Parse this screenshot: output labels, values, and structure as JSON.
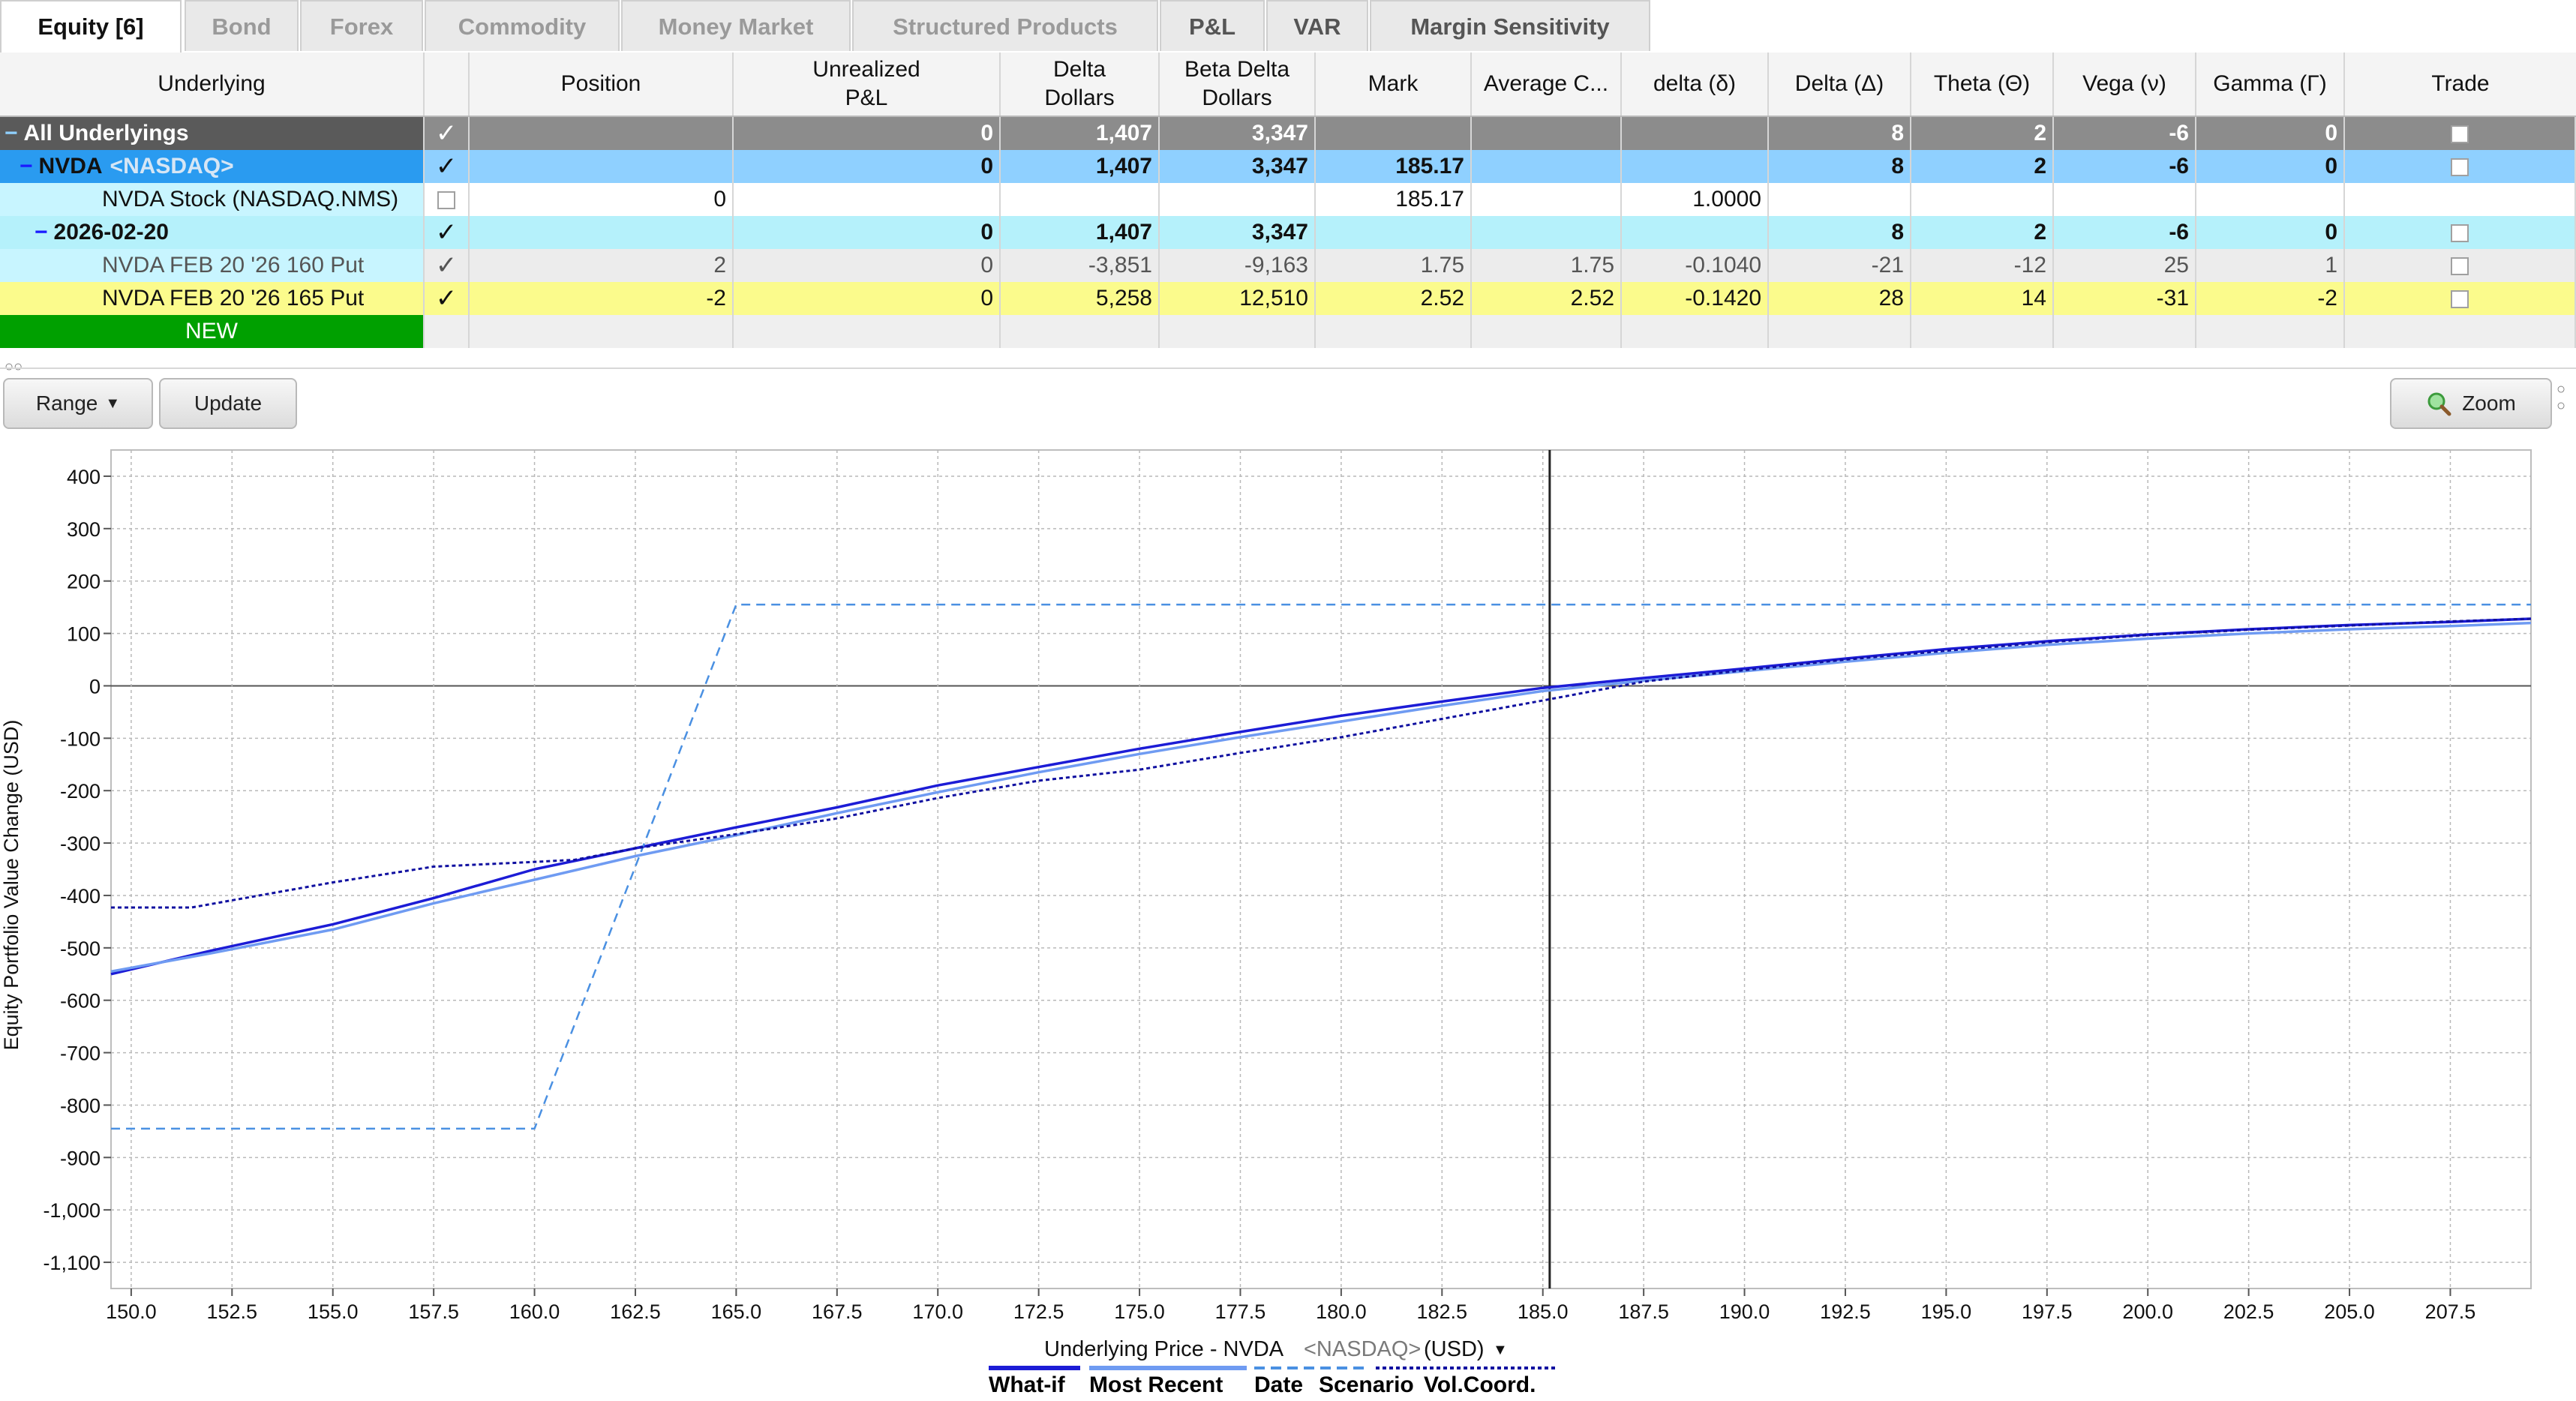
{
  "tabs": [
    "Equity [6]",
    "Bond",
    "Forex",
    "Commodity",
    "Money Market",
    "Structured Products",
    "P&L",
    "VAR",
    "Margin Sensitivity"
  ],
  "grid": {
    "headers": {
      "underlying": "Underlying",
      "position": "Position",
      "unrealized_1": "Unrealized",
      "unrealized_2": "P&L",
      "delta_dollars_1": "Delta",
      "delta_dollars_2": "Dollars",
      "beta_1": "Beta Delta",
      "beta_2": "Dollars",
      "mark": "Mark",
      "avg_cost": "Average C...",
      "delta_small": "delta (δ)",
      "delta_big": "Delta (Δ)",
      "theta": "Theta (Θ)",
      "vega": "Vega (ν)",
      "gamma": "Gamma (Γ)",
      "trade": "Trade"
    },
    "rows": [
      {
        "name": "All Underlyings",
        "extra": "",
        "position": "",
        "unrealized": "0",
        "delta_dollars": "1,407",
        "beta": "3,347",
        "mark": "",
        "avg": "",
        "delta_small": "",
        "delta_big": "8",
        "theta": "2",
        "vega": "-6",
        "gamma": "0"
      },
      {
        "name": "NVDA",
        "extra": "<NASDAQ>",
        "position": "",
        "unrealized": "0",
        "delta_dollars": "1,407",
        "beta": "3,347",
        "mark": "185.17",
        "avg": "",
        "delta_small": "",
        "delta_big": "8",
        "theta": "2",
        "vega": "-6",
        "gamma": "0"
      },
      {
        "name": "NVDA Stock (NASDAQ.NMS)",
        "extra": "",
        "position": "0",
        "unrealized": "",
        "delta_dollars": "",
        "beta": "",
        "mark": "185.17",
        "avg": "",
        "delta_small": "1.0000",
        "delta_big": "",
        "theta": "",
        "vega": "",
        "gamma": ""
      },
      {
        "name": "2026-02-20",
        "extra": "",
        "position": "",
        "unrealized": "0",
        "delta_dollars": "1,407",
        "beta": "3,347",
        "mark": "",
        "avg": "",
        "delta_small": "",
        "delta_big": "8",
        "theta": "2",
        "vega": "-6",
        "gamma": "0"
      },
      {
        "name": "NVDA FEB 20 '26 160 Put",
        "extra": "",
        "position": "2",
        "unrealized": "0",
        "delta_dollars": "-3,851",
        "beta": "-9,163",
        "mark": "1.75",
        "avg": "1.75",
        "delta_small": "-0.1040",
        "delta_big": "-21",
        "theta": "-12",
        "vega": "25",
        "gamma": "1"
      },
      {
        "name": "NVDA FEB 20 '26 165 Put",
        "extra": "",
        "position": "-2",
        "unrealized": "0",
        "delta_dollars": "5,258",
        "beta": "12,510",
        "mark": "2.52",
        "avg": "2.52",
        "delta_small": "-0.1420",
        "delta_big": "28",
        "theta": "14",
        "vega": "-31",
        "gamma": "-2"
      }
    ],
    "new_label": "NEW"
  },
  "toolbar": {
    "range": "Range",
    "update": "Update",
    "zoom": "Zoom"
  },
  "colors": {
    "all_row": "#8c8c8c",
    "nvda_row": "#8fd0ff",
    "light_row": "#c8f5ff",
    "exp_row": "#b5f1fb",
    "yellow_row": "#fbfb8c",
    "new_row": "#00a000",
    "series_today": "#1c1cd6",
    "series_mid": "#6f9bf2",
    "series_expiry": "#4a90e2",
    "series_dotted": "#1010a0"
  },
  "icons": {
    "zoom": "magnifier-icon",
    "range_arrow": "caret-down-icon"
  },
  "chart_data": {
    "type": "line",
    "ylabel": "Equity Portfolio Value Change (USD)",
    "xlabel_main": "Underlying Price - NVDA",
    "xlabel_exchange": "<NASDAQ>",
    "xlabel_unit": "(USD)",
    "xlim": [
      149.5,
      209.5
    ],
    "ylim": [
      -1150,
      450
    ],
    "yticks": [
      400,
      300,
      200,
      100,
      0,
      -100,
      -200,
      -300,
      -400,
      -500,
      -600,
      -700,
      -800,
      -900,
      -1000,
      -1100
    ],
    "ytick_labels": [
      "400",
      "300",
      "200",
      "100",
      "0",
      "-100",
      "-200",
      "-300",
      "-400",
      "-500",
      "-600",
      "-700",
      "-800",
      "-900",
      "-1,000",
      "-1,100"
    ],
    "xticks": [
      150,
      152.5,
      155,
      157.5,
      160,
      162.5,
      165,
      167.5,
      170,
      172.5,
      175,
      177.5,
      180,
      182.5,
      185,
      187.5,
      190,
      192.5,
      195,
      197.5,
      200,
      202.5,
      205,
      207.5
    ],
    "xtick_labels": [
      "150.0",
      "152.5",
      "155.0",
      "157.5",
      "160.0",
      "162.5",
      "165.0",
      "167.5",
      "170.0",
      "172.5",
      "175.0",
      "177.5",
      "180.0",
      "182.5",
      "185.0",
      "187.5",
      "190.0",
      "192.5",
      "195.0",
      "197.5",
      "200.0",
      "202.5",
      "205.0",
      "207.5"
    ],
    "current_price": 185.17,
    "grid": true,
    "legend": [
      "What-if",
      "Most Recent",
      "Date",
      "Scenario",
      "Vol.Coord."
    ],
    "legend_placement": "bottom",
    "series": [
      {
        "style": "solid-dark",
        "x": [
          149.5,
          152,
          155,
          157.5,
          160,
          162.5,
          165,
          167.5,
          170,
          172.5,
          175,
          177.5,
          180,
          182.5,
          185,
          187.5,
          190,
          192.5,
          195,
          197.5,
          200,
          202.5,
          205,
          207.5,
          209.5
        ],
        "y": [
          -550,
          -505,
          -455,
          -405,
          -350,
          -310,
          -270,
          -232,
          -190,
          -155,
          -120,
          -88,
          -57,
          -30,
          -4,
          15,
          33,
          52,
          70,
          85,
          98,
          108,
          116,
          122,
          128
        ]
      },
      {
        "style": "solid-light",
        "x": [
          149.5,
          152,
          155,
          157.5,
          160,
          162.5,
          165,
          167.5,
          170,
          172.5,
          175,
          177.5,
          180,
          182.5,
          185,
          187.5,
          190,
          192.5,
          195,
          197.5,
          200,
          202.5,
          205,
          207.5,
          209.5
        ],
        "y": [
          -545,
          -510,
          -465,
          -415,
          -370,
          -325,
          -285,
          -243,
          -203,
          -165,
          -130,
          -98,
          -68,
          -38,
          -10,
          10,
          28,
          46,
          63,
          78,
          90,
          100,
          108,
          114,
          120
        ]
      },
      {
        "style": "dashed-light",
        "x": [
          149.5,
          160,
          165,
          209.5
        ],
        "y": [
          -845,
          -845,
          155,
          155
        ]
      },
      {
        "style": "dotted-dark",
        "x": [
          149.5,
          151.5,
          155,
          157.5,
          160,
          161,
          162.5,
          165,
          167.5,
          170,
          172.5,
          175,
          177.5,
          180,
          182.5,
          185,
          187.5,
          190,
          192.5,
          195,
          197.5,
          200,
          202.5,
          205,
          207.5,
          209.5
        ],
        "y": [
          -423,
          -423,
          -375,
          -345,
          -336,
          -332,
          -310,
          -283,
          -253,
          -214,
          -181,
          -160,
          -128,
          -98,
          -63,
          -28,
          8,
          30,
          50,
          67,
          83,
          97,
          107,
          115,
          123,
          128
        ]
      }
    ]
  }
}
